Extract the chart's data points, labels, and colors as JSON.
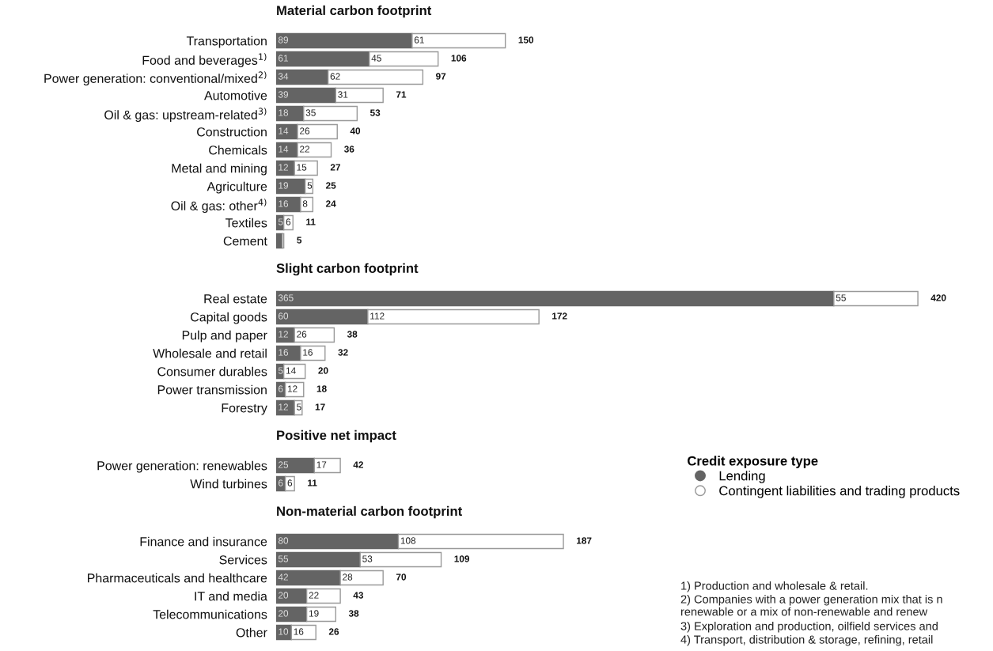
{
  "chart_data": [
    {
      "type": "bar",
      "orientation": "horizontal",
      "stacked": true,
      "title": "Material carbon footprint",
      "categories": [
        "Transportation",
        "Food and beverages$^{1)}$",
        "Power generation: conventional/mixed$^{2)}$",
        "Automotive",
        "Oil & gas: upstream-related$^{3)}$",
        "Construction",
        "Chemicals",
        "Metal and mining",
        "Agriculture",
        "Oil & gas: other$^{4)}$",
        "Textiles",
        "Cement"
      ],
      "series": [
        {
          "name": "Lending",
          "color": "#646464",
          "values": [
            89,
            61,
            34,
            39,
            18,
            14,
            14,
            12,
            19,
            16,
            5,
            4
          ],
          "value_labels": [
            "89",
            "61",
            "34",
            "39",
            "18",
            "14",
            "14",
            "12",
            "19",
            "16",
            "5",
            null
          ]
        },
        {
          "name": "Contingent liabilities and trading products",
          "color": "#ffffff",
          "values": [
            61,
            45,
            62,
            31,
            35,
            26,
            22,
            15,
            5,
            8,
            6,
            1
          ],
          "value_labels": [
            "61",
            "45",
            "62",
            "31",
            "35",
            "26",
            "22",
            "15",
            "5",
            "8",
            "6",
            null
          ]
        }
      ],
      "totals": [
        "150",
        "106",
        "97",
        "71",
        "53",
        "40",
        "36",
        "27",
        "25",
        "24",
        "11",
        "5"
      ],
      "legend": "bottom right",
      "legend_title": "Credit exposure type"
    },
    {
      "type": "bar",
      "orientation": "horizontal",
      "stacked": true,
      "title": "Slight carbon footprint",
      "categories": [
        "Real estate",
        "Capital goods",
        "Pulp and paper",
        "Wholesale and retail",
        "Consumer durables",
        "Power transmission",
        "Forestry"
      ],
      "series": [
        {
          "color": "#646464",
          "values": [
            365,
            60,
            12,
            16,
            5,
            6,
            12
          ],
          "value_labels": [
            "365",
            "60",
            "12",
            "16",
            "5",
            "6",
            "12"
          ]
        },
        {
          "color": "#ffffff",
          "values": [
            55,
            112,
            26,
            16,
            14,
            12,
            5
          ],
          "value_labels": [
            "55",
            "112",
            "26",
            "16",
            "14",
            "12",
            "5"
          ]
        }
      ],
      "totals": [
        "420",
        "172",
        "38",
        "32",
        "20",
        "18",
        "17"
      ]
    },
    {
      "type": "bar",
      "orientation": "horizontal",
      "stacked": true,
      "title": "Positive net impact",
      "categories": [
        "Power generation: renewables",
        "Wind turbines"
      ],
      "series": [
        {
          "color": "#646464",
          "values": [
            25,
            6
          ],
          "value_labels": [
            "25",
            "6"
          ]
        },
        {
          "color": "#ffffff",
          "values": [
            17,
            6
          ],
          "value_labels": [
            "17",
            "6"
          ]
        }
      ],
      "totals": [
        "42",
        "11"
      ]
    },
    {
      "type": "bar",
      "orientation": "horizontal",
      "stacked": true,
      "title": "Non-material carbon footprint",
      "categories": [
        "Finance and insurance",
        "Services",
        "Pharmaceuticals and healthcare",
        "IT and media",
        "Telecommunications",
        "Other"
      ],
      "series": [
        {
          "color": "#646464",
          "values": [
            80,
            55,
            42,
            20,
            20,
            10
          ],
          "value_labels": [
            "80",
            "55",
            "42",
            "20",
            "20",
            "10"
          ]
        },
        {
          "color": "#ffffff",
          "values": [
            108,
            53,
            28,
            22,
            19,
            16
          ],
          "value_labels": [
            "108",
            "53",
            "28",
            "22",
            "19",
            "16"
          ]
        }
      ],
      "totals": [
        "187",
        "109",
        "70",
        "43",
        "38",
        "26"
      ],
      "annotations": [
        "1) Production and wholesale & retail.",
        "2) Companies with a power generation mix that is n\nrenewable or a mix of non-renewable and renew",
        "3) Exploration and production, oilfield services and",
        "4) Transport, distribution & storage, refining, retail"
      ]
    }
  ]
}
